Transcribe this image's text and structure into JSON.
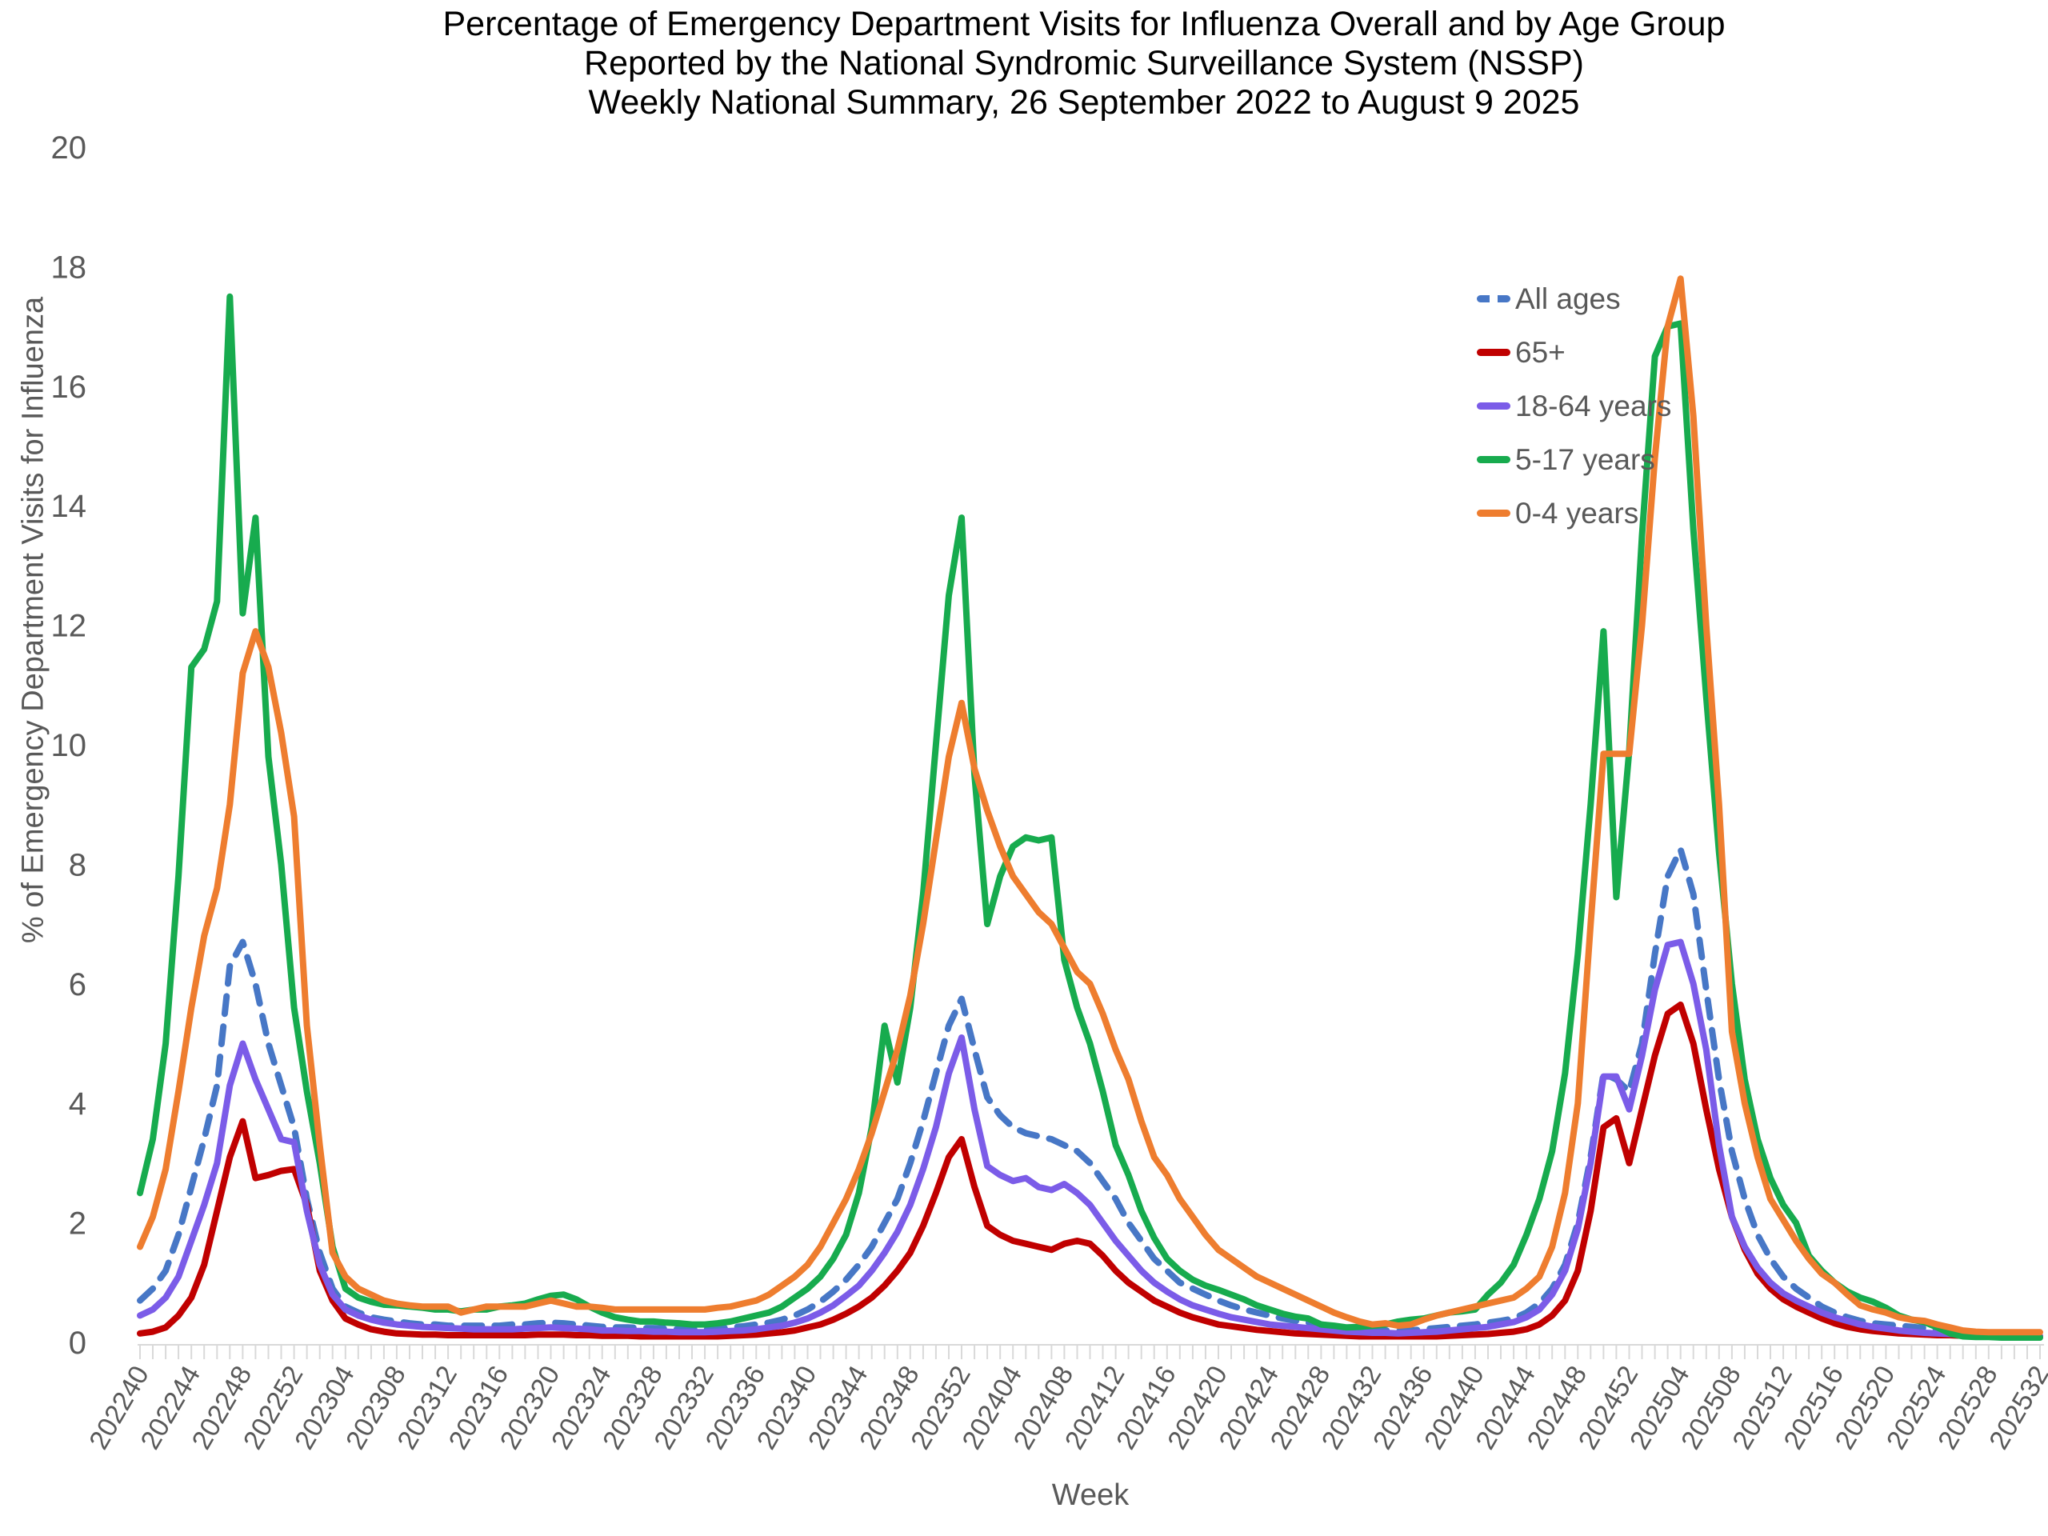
{
  "title": {
    "line1": "Percentage of Emergency Department Visits for Influenza Overall and by Age Group",
    "line2": "Reported by the National Syndromic Surveillance System (NSSP)",
    "line3": "Weekly National Summary, 26 September 2022 to  August 9 2025"
  },
  "chart_data": {
    "type": "line",
    "title": "Percentage of Emergency Department Visits for Influenza Overall and by Age Group Reported by the National Syndromic Surveillance System (NSSP) Weekly National Summary, 26 September 2022 to August 9 2025",
    "xlabel": "Week",
    "ylabel": "% of Emergency Department Visits for Influenza",
    "ylim": [
      0,
      20
    ],
    "y_ticks": [
      0,
      2,
      4,
      6,
      8,
      10,
      12,
      14,
      16,
      18,
      20
    ],
    "grid": false,
    "legend_position": "inside-top-right",
    "x_tick_every": 4,
    "x_tick_labels": [
      "202240",
      "202244",
      "202248",
      "202252",
      "202304",
      "202308",
      "202312",
      "202316",
      "202320",
      "202324",
      "202328",
      "202332",
      "202336",
      "202340",
      "202344",
      "202348",
      "202352",
      "202404",
      "202408",
      "202412",
      "202416",
      "202420",
      "202424",
      "202428",
      "202432",
      "202436",
      "202440",
      "202444",
      "202448",
      "202452",
      "202504",
      "202508",
      "202512",
      "202516",
      "202520",
      "202524",
      "202528",
      "202532"
    ],
    "weeks": [
      "202240",
      "202241",
      "202242",
      "202243",
      "202244",
      "202245",
      "202246",
      "202247",
      "202248",
      "202249",
      "202250",
      "202251",
      "202252",
      "202301",
      "202302",
      "202303",
      "202304",
      "202305",
      "202306",
      "202307",
      "202308",
      "202309",
      "202310",
      "202311",
      "202312",
      "202313",
      "202314",
      "202315",
      "202316",
      "202317",
      "202318",
      "202319",
      "202320",
      "202321",
      "202322",
      "202323",
      "202324",
      "202325",
      "202326",
      "202327",
      "202328",
      "202329",
      "202330",
      "202331",
      "202332",
      "202333",
      "202334",
      "202335",
      "202336",
      "202337",
      "202338",
      "202339",
      "202340",
      "202341",
      "202342",
      "202343",
      "202344",
      "202345",
      "202346",
      "202347",
      "202348",
      "202349",
      "202350",
      "202351",
      "202352",
      "202401",
      "202402",
      "202403",
      "202404",
      "202405",
      "202406",
      "202407",
      "202408",
      "202409",
      "202410",
      "202411",
      "202412",
      "202413",
      "202414",
      "202415",
      "202416",
      "202417",
      "202418",
      "202419",
      "202420",
      "202421",
      "202422",
      "202423",
      "202424",
      "202425",
      "202426",
      "202427",
      "202428",
      "202429",
      "202430",
      "202431",
      "202432",
      "202433",
      "202434",
      "202435",
      "202436",
      "202437",
      "202438",
      "202439",
      "202440",
      "202441",
      "202442",
      "202443",
      "202444",
      "202445",
      "202446",
      "202447",
      "202448",
      "202449",
      "202450",
      "202451",
      "202452",
      "202501",
      "202502",
      "202503",
      "202504",
      "202505",
      "202506",
      "202507",
      "202508",
      "202509",
      "202510",
      "202511",
      "202512",
      "202513",
      "202514",
      "202515",
      "202516",
      "202517",
      "202518",
      "202519",
      "202520",
      "202521",
      "202522",
      "202523",
      "202524",
      "202525",
      "202526",
      "202527",
      "202528",
      "202529",
      "202530",
      "202531",
      "202532"
    ],
    "series": [
      {
        "name": "All ages",
        "color": "#4777C6",
        "dash": true,
        "values": [
          0.7,
          0.9,
          1.2,
          1.8,
          2.6,
          3.4,
          4.3,
          6.3,
          6.7,
          6.0,
          5.0,
          4.3,
          3.6,
          2.4,
          1.5,
          0.9,
          0.6,
          0.5,
          0.42,
          0.38,
          0.35,
          0.32,
          0.3,
          0.3,
          0.28,
          0.28,
          0.28,
          0.28,
          0.28,
          0.3,
          0.3,
          0.32,
          0.33,
          0.32,
          0.3,
          0.28,
          0.26,
          0.25,
          0.25,
          0.24,
          0.24,
          0.23,
          0.22,
          0.22,
          0.22,
          0.23,
          0.25,
          0.27,
          0.3,
          0.33,
          0.38,
          0.45,
          0.55,
          0.68,
          0.85,
          1.05,
          1.3,
          1.6,
          2.0,
          2.4,
          3.0,
          3.7,
          4.5,
          5.3,
          5.75,
          4.9,
          4.1,
          3.8,
          3.6,
          3.5,
          3.45,
          3.4,
          3.3,
          3.2,
          3.0,
          2.7,
          2.4,
          2.0,
          1.7,
          1.4,
          1.2,
          1.0,
          0.9,
          0.8,
          0.7,
          0.62,
          0.55,
          0.5,
          0.45,
          0.4,
          0.36,
          0.33,
          0.3,
          0.27,
          0.24,
          0.22,
          0.2,
          0.2,
          0.19,
          0.2,
          0.22,
          0.24,
          0.26,
          0.28,
          0.3,
          0.33,
          0.36,
          0.4,
          0.5,
          0.65,
          0.9,
          1.3,
          2.0,
          3.1,
          4.5,
          4.4,
          4.2,
          5.0,
          6.5,
          7.8,
          8.25,
          7.5,
          5.9,
          4.4,
          3.2,
          2.4,
          1.8,
          1.4,
          1.1,
          0.9,
          0.75,
          0.6,
          0.5,
          0.42,
          0.36,
          0.32,
          0.3,
          0.28,
          0.26,
          0.24,
          0.22,
          0.2,
          0.18,
          0.16,
          0.15,
          0.13,
          0.12,
          0.11,
          0.1
        ]
      },
      {
        "name": "65+",
        "color": "#C00000",
        "dash": false,
        "values": [
          0.15,
          0.18,
          0.25,
          0.45,
          0.75,
          1.3,
          2.2,
          3.1,
          3.7,
          2.75,
          2.8,
          2.87,
          2.9,
          2.3,
          1.2,
          0.7,
          0.4,
          0.3,
          0.22,
          0.18,
          0.15,
          0.14,
          0.13,
          0.13,
          0.12,
          0.12,
          0.12,
          0.12,
          0.12,
          0.12,
          0.12,
          0.13,
          0.13,
          0.13,
          0.12,
          0.12,
          0.11,
          0.11,
          0.11,
          0.1,
          0.1,
          0.1,
          0.1,
          0.1,
          0.1,
          0.1,
          0.11,
          0.12,
          0.13,
          0.15,
          0.17,
          0.2,
          0.25,
          0.3,
          0.38,
          0.48,
          0.6,
          0.75,
          0.95,
          1.2,
          1.5,
          1.95,
          2.5,
          3.1,
          3.4,
          2.6,
          1.95,
          1.8,
          1.7,
          1.65,
          1.6,
          1.55,
          1.65,
          1.7,
          1.65,
          1.45,
          1.2,
          1.0,
          0.85,
          0.7,
          0.6,
          0.5,
          0.42,
          0.36,
          0.3,
          0.27,
          0.24,
          0.21,
          0.19,
          0.17,
          0.15,
          0.14,
          0.13,
          0.12,
          0.11,
          0.1,
          0.1,
          0.1,
          0.1,
          0.1,
          0.1,
          0.1,
          0.11,
          0.12,
          0.13,
          0.14,
          0.16,
          0.18,
          0.22,
          0.3,
          0.45,
          0.7,
          1.2,
          2.2,
          3.6,
          3.75,
          3.0,
          3.9,
          4.8,
          5.5,
          5.65,
          5.0,
          3.9,
          2.9,
          2.1,
          1.55,
          1.15,
          0.9,
          0.72,
          0.6,
          0.5,
          0.4,
          0.32,
          0.26,
          0.22,
          0.19,
          0.17,
          0.15,
          0.14,
          0.13,
          0.12,
          0.12,
          0.11,
          0.11,
          0.1,
          0.1,
          0.1,
          0.1,
          0.1
        ]
      },
      {
        "name": "18-64 years",
        "color": "#7B5CE8",
        "dash": false,
        "values": [
          0.45,
          0.55,
          0.75,
          1.1,
          1.7,
          2.3,
          3.0,
          4.3,
          5.0,
          4.4,
          3.9,
          3.4,
          3.35,
          2.2,
          1.3,
          0.8,
          0.55,
          0.45,
          0.38,
          0.33,
          0.3,
          0.28,
          0.26,
          0.25,
          0.24,
          0.23,
          0.22,
          0.22,
          0.22,
          0.22,
          0.23,
          0.24,
          0.25,
          0.24,
          0.23,
          0.22,
          0.2,
          0.2,
          0.19,
          0.19,
          0.18,
          0.18,
          0.17,
          0.17,
          0.17,
          0.18,
          0.19,
          0.2,
          0.22,
          0.25,
          0.28,
          0.33,
          0.4,
          0.5,
          0.62,
          0.78,
          0.95,
          1.2,
          1.5,
          1.85,
          2.3,
          2.9,
          3.6,
          4.5,
          5.1,
          3.9,
          2.95,
          2.8,
          2.7,
          2.75,
          2.6,
          2.55,
          2.65,
          2.5,
          2.3,
          2.0,
          1.7,
          1.45,
          1.2,
          1.0,
          0.85,
          0.72,
          0.62,
          0.55,
          0.48,
          0.42,
          0.38,
          0.34,
          0.3,
          0.28,
          0.26,
          0.24,
          0.22,
          0.2,
          0.18,
          0.17,
          0.16,
          0.16,
          0.15,
          0.16,
          0.17,
          0.18,
          0.2,
          0.22,
          0.24,
          0.26,
          0.3,
          0.34,
          0.42,
          0.55,
          0.8,
          1.2,
          1.9,
          3.0,
          4.45,
          4.45,
          3.9,
          4.8,
          5.9,
          6.65,
          6.7,
          6.0,
          4.9,
          3.3,
          2.1,
          1.6,
          1.25,
          1.0,
          0.82,
          0.7,
          0.6,
          0.5,
          0.42,
          0.36,
          0.3,
          0.26,
          0.23,
          0.2,
          0.18,
          0.16,
          0.15,
          0.14,
          0.13,
          0.12,
          0.12,
          0.11,
          0.11,
          0.1,
          0.1
        ]
      },
      {
        "name": "5-17 years",
        "color": "#17AB4E",
        "dash": false,
        "values": [
          2.5,
          3.4,
          5.0,
          7.8,
          11.3,
          11.6,
          12.4,
          17.5,
          12.2,
          13.8,
          9.8,
          8.0,
          5.6,
          4.2,
          3.0,
          1.6,
          0.9,
          0.75,
          0.68,
          0.63,
          0.62,
          0.6,
          0.58,
          0.55,
          0.55,
          0.52,
          0.55,
          0.55,
          0.6,
          0.62,
          0.65,
          0.72,
          0.78,
          0.8,
          0.72,
          0.6,
          0.5,
          0.42,
          0.38,
          0.35,
          0.35,
          0.33,
          0.32,
          0.3,
          0.3,
          0.32,
          0.35,
          0.4,
          0.45,
          0.5,
          0.6,
          0.75,
          0.9,
          1.1,
          1.4,
          1.8,
          2.5,
          3.6,
          5.3,
          4.35,
          5.6,
          7.5,
          10.0,
          12.5,
          13.8,
          9.5,
          7.0,
          7.8,
          8.3,
          8.45,
          8.4,
          8.45,
          6.4,
          5.6,
          5.0,
          4.2,
          3.3,
          2.8,
          2.2,
          1.75,
          1.4,
          1.2,
          1.05,
          0.95,
          0.88,
          0.8,
          0.72,
          0.62,
          0.55,
          0.48,
          0.43,
          0.4,
          0.3,
          0.28,
          0.25,
          0.26,
          0.28,
          0.3,
          0.35,
          0.38,
          0.4,
          0.45,
          0.5,
          0.52,
          0.55,
          0.8,
          1.0,
          1.3,
          1.8,
          2.4,
          3.2,
          4.5,
          6.5,
          9.0,
          11.9,
          7.45,
          9.9,
          13.5,
          16.5,
          17.0,
          17.05,
          13.6,
          10.8,
          8.2,
          6.0,
          4.4,
          3.4,
          2.75,
          2.3,
          2.0,
          1.45,
          1.2,
          1.0,
          0.85,
          0.75,
          0.68,
          0.58,
          0.45,
          0.38,
          0.34,
          0.25,
          0.15,
          0.1,
          0.09,
          0.09,
          0.08,
          0.08,
          0.08,
          0.08
        ]
      },
      {
        "name": "0-4 years",
        "color": "#EE7D2F",
        "dash": false,
        "values": [
          1.6,
          2.1,
          2.9,
          4.2,
          5.6,
          6.8,
          7.6,
          9.0,
          11.2,
          11.9,
          11.3,
          10.2,
          8.8,
          5.3,
          3.3,
          1.5,
          1.1,
          0.9,
          0.8,
          0.7,
          0.65,
          0.62,
          0.6,
          0.6,
          0.6,
          0.5,
          0.55,
          0.6,
          0.6,
          0.6,
          0.6,
          0.65,
          0.7,
          0.65,
          0.6,
          0.6,
          0.58,
          0.55,
          0.55,
          0.55,
          0.55,
          0.55,
          0.55,
          0.55,
          0.55,
          0.58,
          0.6,
          0.65,
          0.7,
          0.8,
          0.95,
          1.1,
          1.3,
          1.6,
          2.0,
          2.4,
          2.9,
          3.5,
          4.2,
          4.9,
          5.8,
          7.0,
          8.4,
          9.8,
          10.7,
          9.6,
          8.9,
          8.3,
          7.8,
          7.5,
          7.2,
          7.0,
          6.6,
          6.2,
          6.0,
          5.5,
          4.9,
          4.4,
          3.7,
          3.1,
          2.8,
          2.4,
          2.1,
          1.8,
          1.55,
          1.4,
          1.25,
          1.1,
          1.0,
          0.9,
          0.8,
          0.7,
          0.6,
          0.5,
          0.42,
          0.35,
          0.3,
          0.32,
          0.28,
          0.3,
          0.38,
          0.45,
          0.5,
          0.55,
          0.6,
          0.65,
          0.7,
          0.75,
          0.9,
          1.1,
          1.6,
          2.5,
          4.0,
          7.0,
          9.85,
          9.85,
          9.85,
          12.0,
          14.8,
          17.0,
          17.8,
          15.5,
          12.0,
          9.0,
          5.2,
          4.0,
          3.1,
          2.4,
          2.05,
          1.7,
          1.4,
          1.15,
          1.0,
          0.8,
          0.62,
          0.55,
          0.5,
          0.42,
          0.38,
          0.36,
          0.3,
          0.25,
          0.2,
          0.18,
          0.17,
          0.17,
          0.17,
          0.17,
          0.17
        ]
      }
    ],
    "axis_colors": {
      "tick_text": "#595959",
      "axis_line": "#D9D9D9",
      "title_text": "#000000"
    }
  }
}
